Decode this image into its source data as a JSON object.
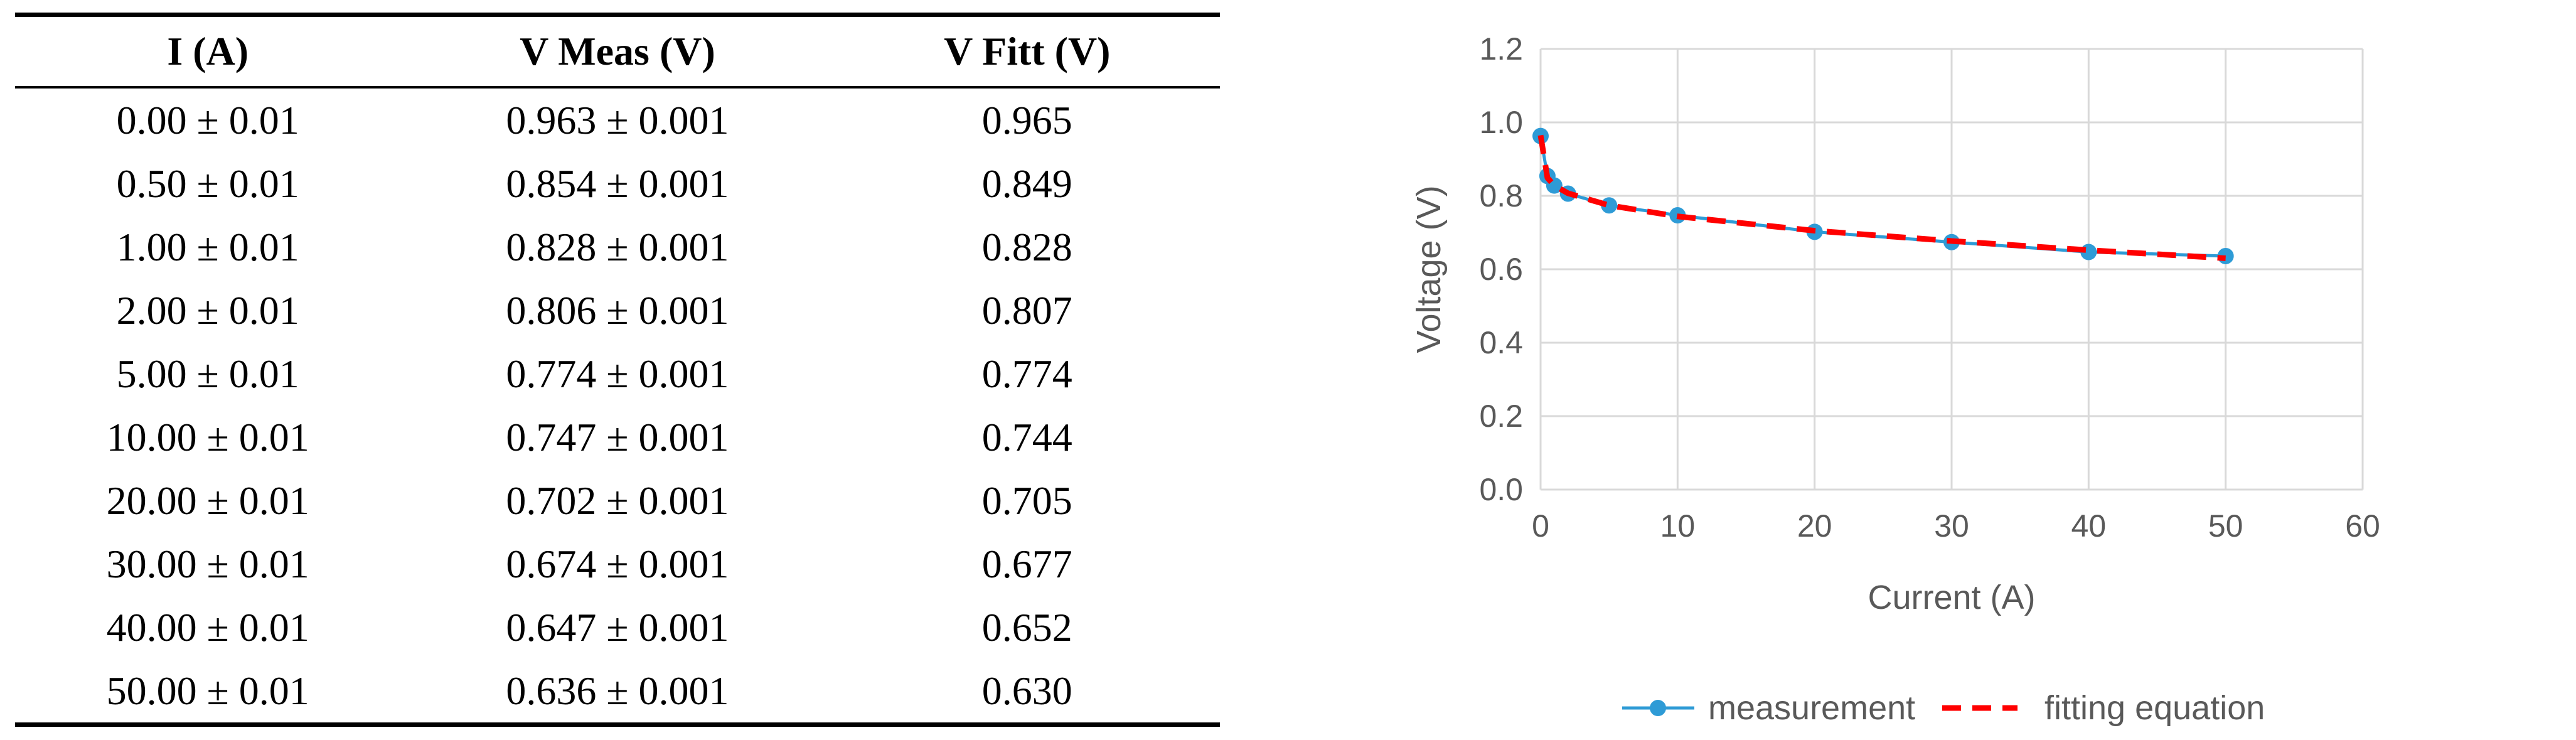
{
  "table": {
    "headers": [
      "I (A)",
      "V Meas (V)",
      "V Fitt (V)"
    ],
    "rows": [
      [
        "0.00 ± 0.01",
        "0.963 ± 0.001",
        "0.965"
      ],
      [
        "0.50 ± 0.01",
        "0.854 ± 0.001",
        "0.849"
      ],
      [
        "1.00 ± 0.01",
        "0.828 ± 0.001",
        "0.828"
      ],
      [
        "2.00 ± 0.01",
        "0.806 ± 0.001",
        "0.807"
      ],
      [
        "5.00 ± 0.01",
        "0.774 ± 0.001",
        "0.774"
      ],
      [
        "10.00 ± 0.01",
        "0.747 ± 0.001",
        "0.744"
      ],
      [
        "20.00 ± 0.01",
        "0.702 ± 0.001",
        "0.705"
      ],
      [
        "30.00 ± 0.01",
        "0.674 ± 0.001",
        "0.677"
      ],
      [
        "40.00 ± 0.01",
        "0.647 ± 0.001",
        "0.652"
      ],
      [
        "50.00 ± 0.01",
        "0.636 ± 0.001",
        "0.630"
      ]
    ]
  },
  "chart_data": {
    "type": "line",
    "xlabel": "Current (A)",
    "ylabel": "Voltage (V)",
    "xlim": [
      0,
      60
    ],
    "ylim": [
      0,
      1.2
    ],
    "xticks": [
      "0",
      "10",
      "20",
      "30",
      "40",
      "50",
      "60"
    ],
    "yticks": [
      "0.0",
      "0.2",
      "0.4",
      "0.6",
      "0.8",
      "1.0",
      "1.2"
    ],
    "grid": true,
    "legend_position": "bottom",
    "series": [
      {
        "name": "measurement",
        "color": "#2e9bd6",
        "style": "solid-with-markers",
        "x": [
          0,
          0.5,
          1,
          2,
          5,
          10,
          20,
          30,
          40,
          50
        ],
        "y": [
          0.963,
          0.854,
          0.828,
          0.806,
          0.774,
          0.747,
          0.702,
          0.674,
          0.647,
          0.636
        ]
      },
      {
        "name": "fitting equation",
        "color": "#ff0000",
        "style": "dashed",
        "x": [
          0,
          0.5,
          1,
          2,
          5,
          10,
          20,
          30,
          40,
          50
        ],
        "y": [
          0.965,
          0.849,
          0.828,
          0.807,
          0.774,
          0.744,
          0.705,
          0.677,
          0.652,
          0.63
        ]
      }
    ]
  }
}
